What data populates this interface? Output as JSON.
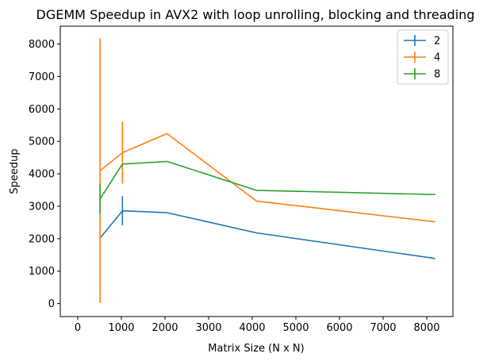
{
  "chart_data": {
    "type": "line",
    "title": "DGEMM Speedup in AVX2 with loop unrolling, blocking and threading",
    "xlabel": "Matrix Size (N x N)",
    "ylabel": "Speedup",
    "xlim": [
      -400,
      8600
    ],
    "ylim": [
      -400,
      8550
    ],
    "xticks": [
      0,
      1000,
      2000,
      3000,
      4000,
      5000,
      6000,
      7000,
      8000
    ],
    "yticks": [
      0,
      1000,
      2000,
      3000,
      4000,
      5000,
      6000,
      7000,
      8000
    ],
    "grid": false,
    "legend_position": "top-right",
    "series": [
      {
        "name": "2",
        "color": "#1f77b4",
        "x": [
          512,
          1024,
          2048,
          4096,
          8192
        ],
        "y": [
          2020,
          2860,
          2800,
          2180,
          1390
        ],
        "yerr": [
          0,
          450,
          0,
          0,
          0
        ]
      },
      {
        "name": "4",
        "color": "#ff7f0e",
        "x": [
          512,
          1024,
          2048,
          4096,
          8192
        ],
        "y": [
          4100,
          4650,
          5240,
          3160,
          2520
        ],
        "yerr": [
          4080,
          950,
          0,
          0,
          0
        ]
      },
      {
        "name": "8",
        "color": "#2ca02c",
        "x": [
          512,
          1024,
          2048,
          4096,
          8192
        ],
        "y": [
          3230,
          4300,
          4380,
          3490,
          3360
        ],
        "yerr": [
          470,
          0,
          0,
          0,
          0
        ]
      }
    ]
  }
}
